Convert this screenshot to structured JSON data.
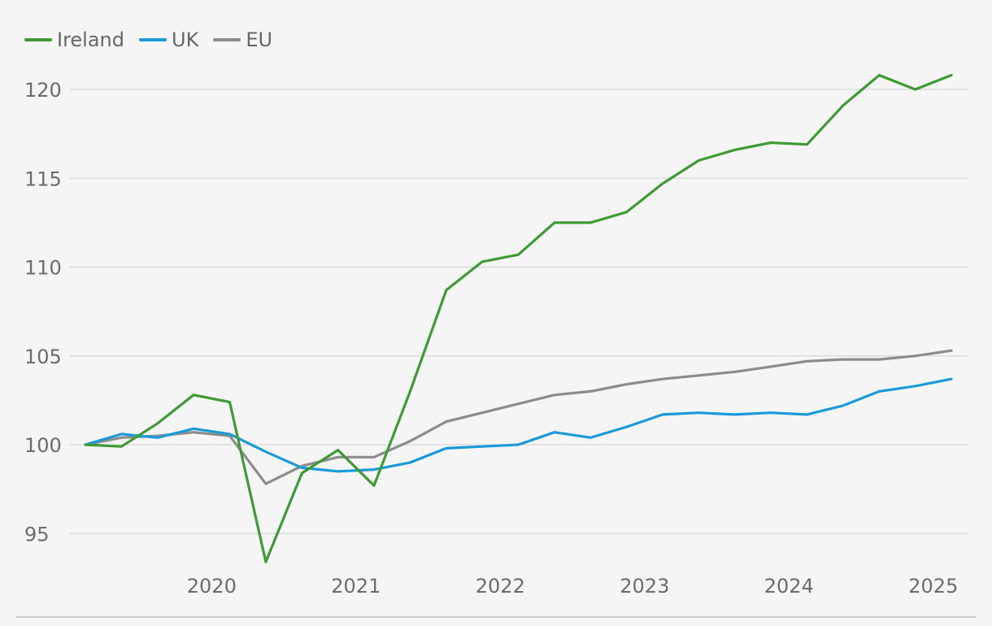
{
  "chart_data": {
    "type": "line",
    "title": "",
    "xlabel": "",
    "ylabel": "",
    "ylim": [
      92.5,
      122.5
    ],
    "yticks": [
      95,
      100,
      105,
      110,
      115,
      120
    ],
    "x_tick_labels": [
      "2020",
      "2021",
      "2022",
      "2023",
      "2024",
      "2025"
    ],
    "x": [
      "2019 Q2",
      "2019 Q3",
      "2019 Q4",
      "2020 Q1",
      "2020 Q2",
      "2020 Q3",
      "2020 Q4",
      "2021 Q1",
      "2021 Q2",
      "2021 Q3",
      "2021 Q4",
      "2022 Q1",
      "2022 Q2",
      "2022 Q3",
      "2022 Q4",
      "2023 Q1",
      "2023 Q2",
      "2023 Q3",
      "2023 Q4",
      "2024 Q1",
      "2024 Q2",
      "2024 Q3",
      "2024 Q4",
      "2025 Q1",
      "2025 Q2"
    ],
    "legend_position": "top-left",
    "grid": true,
    "series": [
      {
        "name": "Ireland",
        "color": "#3f9a36",
        "values": [
          100,
          99.9,
          101.2,
          102.8,
          102.4,
          93.4,
          98.4,
          99.7,
          97.7,
          103.0,
          108.7,
          110.3,
          110.7,
          112.5,
          112.5,
          113.1,
          114.7,
          116.0,
          116.6,
          117.0,
          116.9,
          119.1,
          120.8,
          120.0,
          120.8
        ]
      },
      {
        "name": "UK",
        "color": "#1a9ad6",
        "values": [
          100,
          100.6,
          100.4,
          100.9,
          100.6,
          99.6,
          98.7,
          98.5,
          98.6,
          99.0,
          99.8,
          99.9,
          100.0,
          100.7,
          100.4,
          101.0,
          101.7,
          101.8,
          101.7,
          101.8,
          101.7,
          102.2,
          103.0,
          103.3,
          103.7
        ]
      },
      {
        "name": "EU",
        "color": "#8c8c8c",
        "values": [
          100,
          100.4,
          100.5,
          100.7,
          100.5,
          97.8,
          98.8,
          99.3,
          99.3,
          100.2,
          101.3,
          101.8,
          102.3,
          102.8,
          103.0,
          103.4,
          103.7,
          103.9,
          104.1,
          104.4,
          104.7,
          104.8,
          104.8,
          105.0,
          105.3
        ]
      }
    ]
  },
  "style": {
    "grid_color": "#dcdcdc",
    "axis_color": "#bdbdbd",
    "tick_text_color": "#6b6b6b"
  }
}
